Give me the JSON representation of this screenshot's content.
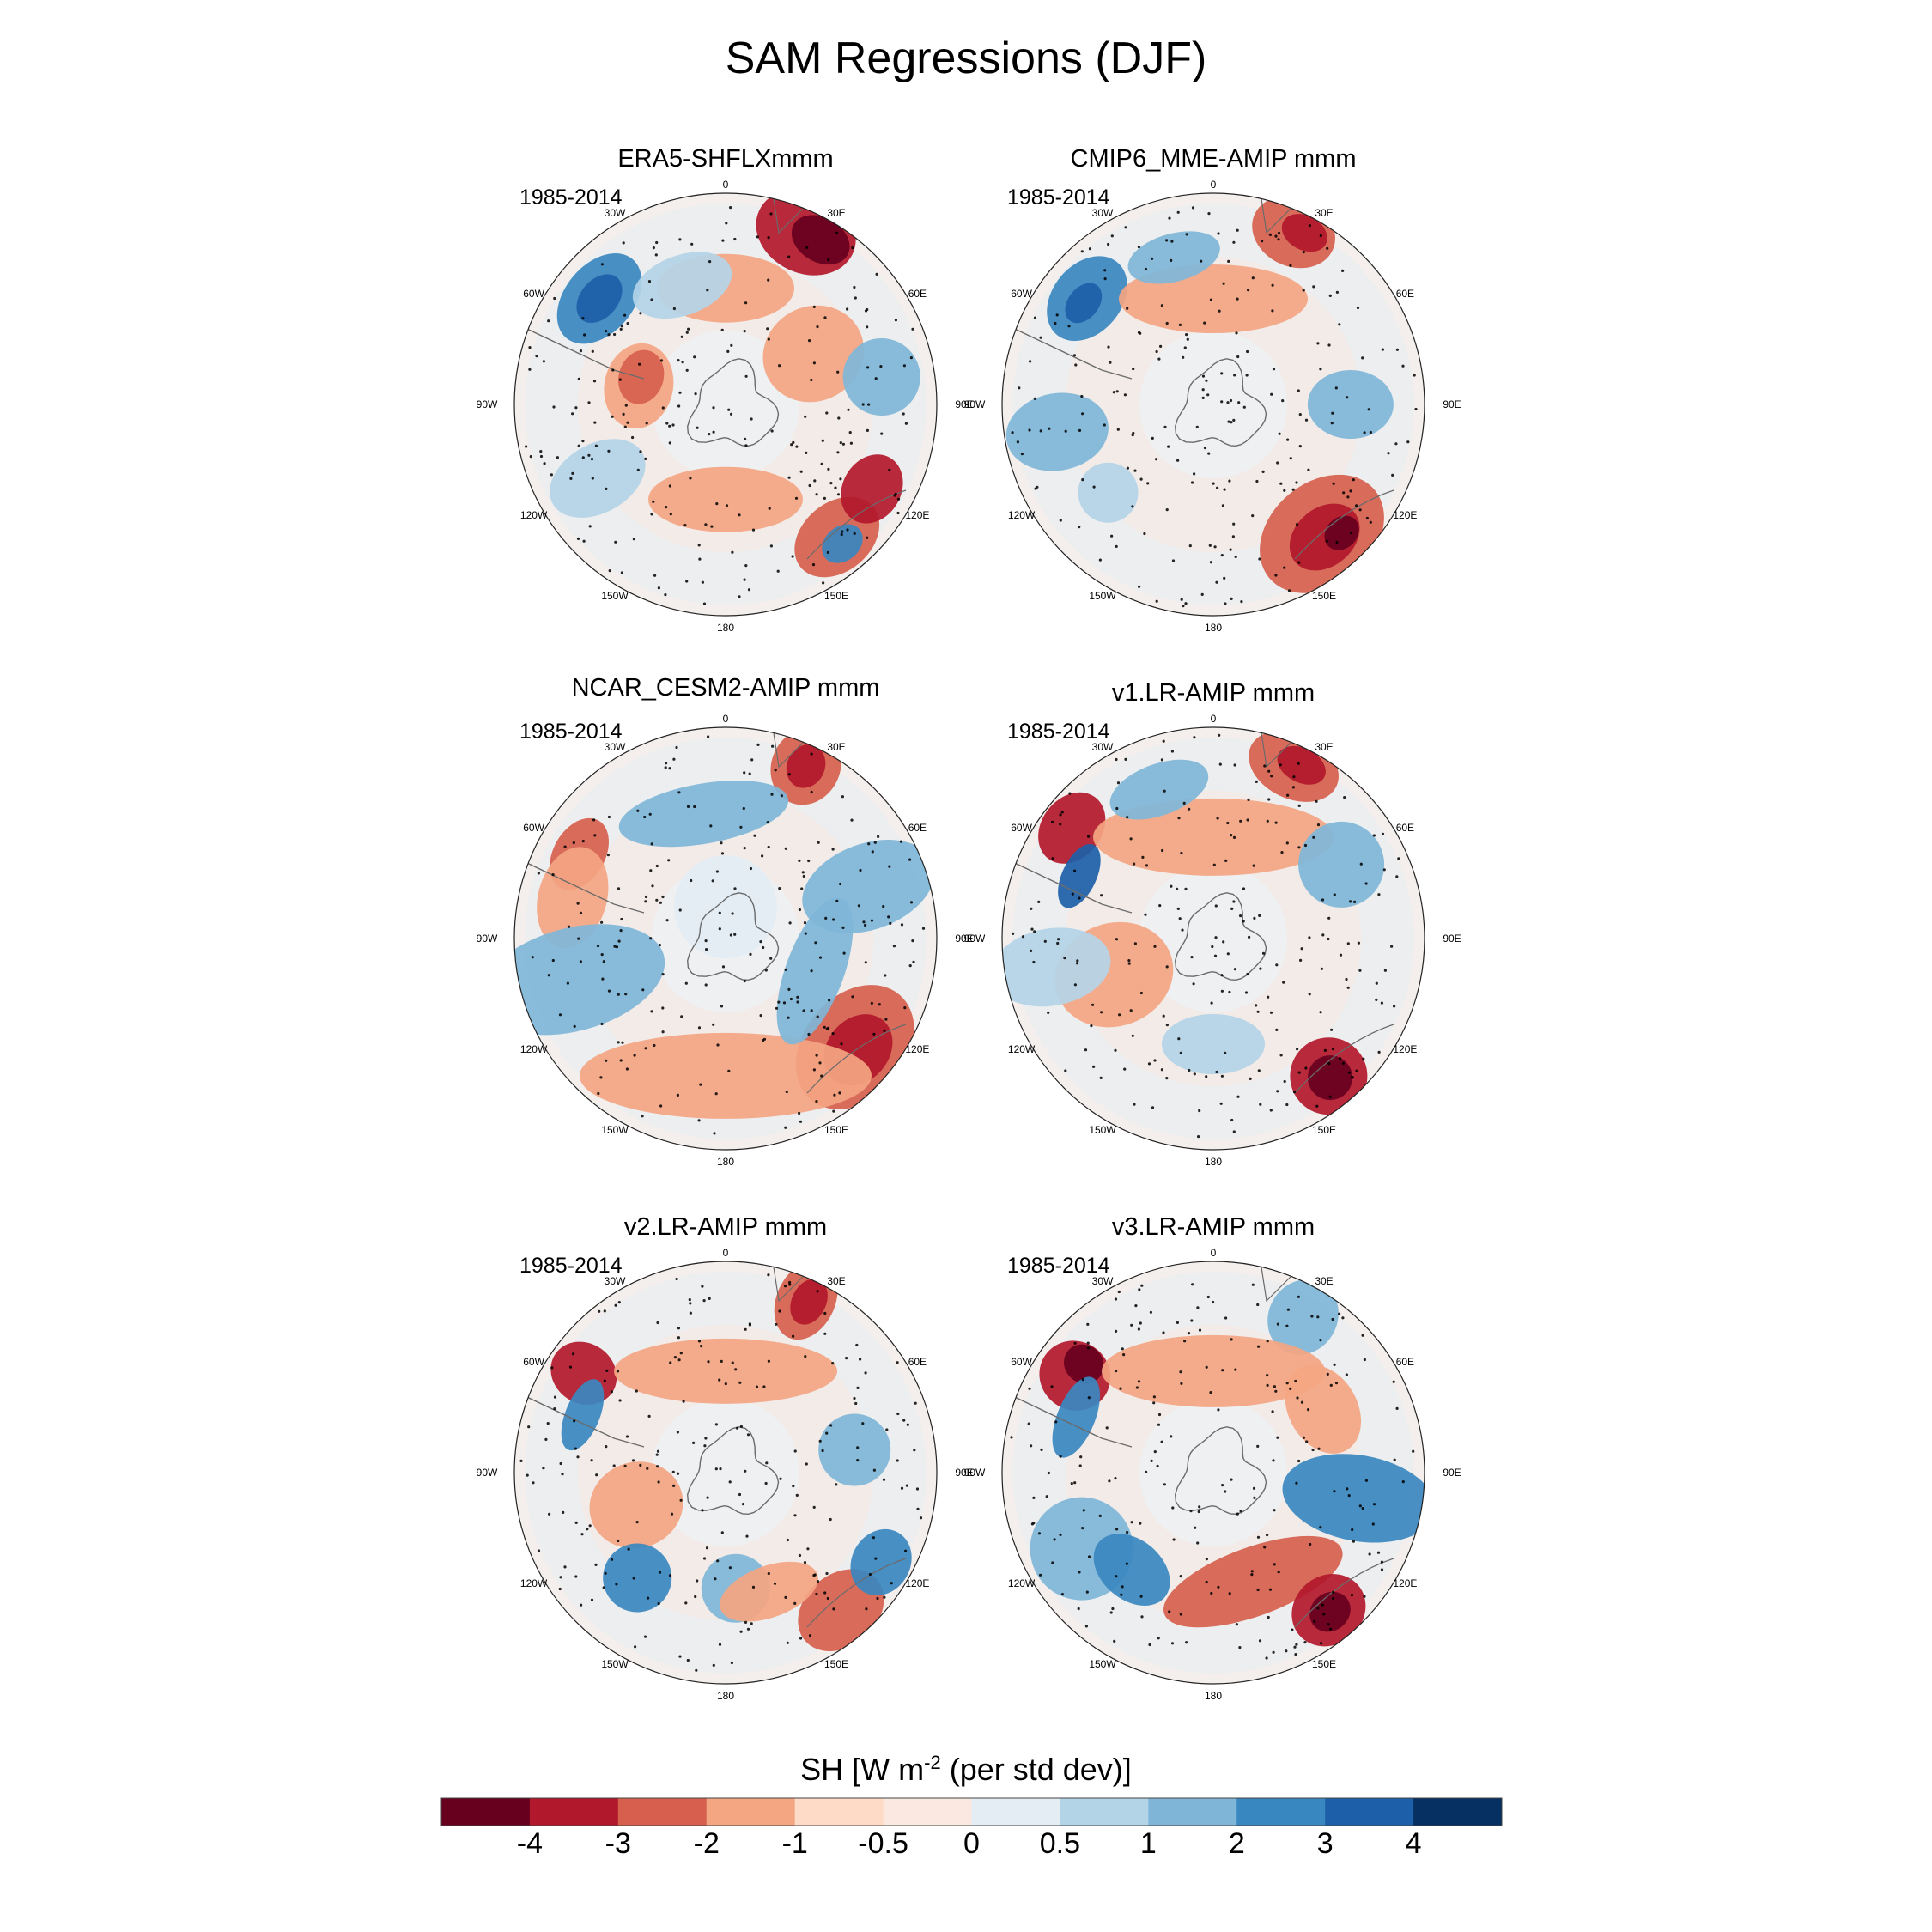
{
  "chart_data": {
    "type": "map",
    "title": "SAM Regressions (DJF)",
    "projection": "south-polar-stereographic",
    "period": "1985-2014",
    "longitude_labels": [
      "0",
      "30E",
      "60E",
      "90E",
      "120E",
      "150E",
      "180",
      "150W",
      "120W",
      "90W",
      "60W",
      "30W"
    ],
    "panels": [
      {
        "title": "ERA5-SHFLXmmm",
        "period": "1985-2014"
      },
      {
        "title": "CMIP6_MME-AMIP  mmm",
        "period": "1985-2014"
      },
      {
        "title": "NCAR_CESM2-AMIP  mmm",
        "period": "1985-2014"
      },
      {
        "title": "v1.LR-AMIP  mmm",
        "period": "1985-2014"
      },
      {
        "title": "v2.LR-AMIP  mmm",
        "period": "1985-2014"
      },
      {
        "title": "v3.LR-AMIP  mmm",
        "period": "1985-2014"
      }
    ],
    "colorbar": {
      "label_main": "SH [W m",
      "label_sup": "-2",
      "label_tail": " (per std dev)]",
      "tick_labels": [
        "-4",
        "-3",
        "-2",
        "-1",
        "-0.5",
        "0",
        "0.5",
        "1",
        "2",
        "3",
        "4"
      ],
      "colors": [
        "#67001f",
        "#b2182b",
        "#d6604d",
        "#f4a582",
        "#fddbc7",
        "#fbe8e0",
        "#e4edf4",
        "#b3d4e7",
        "#7fb6d8",
        "#3987c0",
        "#1d5fa8",
        "#053061"
      ]
    }
  }
}
